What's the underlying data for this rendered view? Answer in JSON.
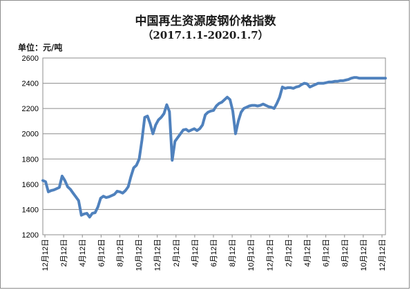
{
  "chart_data": {
    "type": "line",
    "title": "中国再生资源废钢价格指数",
    "subtitle": "（2017.1.1-2020.1.7）",
    "unit_label": "单位：元/吨",
    "xlabel": "",
    "ylabel": "",
    "ylim": [
      1200,
      2600
    ],
    "y_ticks": [
      "1200",
      "1400",
      "1600",
      "1800",
      "2000",
      "2200",
      "2400",
      "2600"
    ],
    "x_tick_labels": [
      "12月12日",
      "2月12日",
      "4月12日",
      "6月12日",
      "8月12日",
      "10月12日",
      "12月12日",
      "2月12日",
      "4月12日",
      "6月12日",
      "8月12日",
      "10月12日",
      "12月12日",
      "2月12日",
      "4月12日",
      "6月12日",
      "8月12日",
      "10月12日",
      "12月12日"
    ],
    "grid": "horizontal",
    "legend": "none",
    "line_color": "#4f81bd",
    "series": [
      {
        "x": [
          "2016-12-13",
          "2016-12-22",
          "2016-12-31",
          "2017-01-09",
          "2017-01-18",
          "2017-01-27",
          "2017-02-05",
          "2017-02-14",
          "2017-02-23",
          "2017-03-04",
          "2017-03-13",
          "2017-03-22",
          "2017-03-31",
          "2017-04-09",
          "2017-04-18",
          "2017-04-27",
          "2017-05-06",
          "2017-05-15",
          "2017-05-24",
          "2017-06-02",
          "2017-06-11",
          "2017-06-20",
          "2017-06-29",
          "2017-07-08",
          "2017-07-17",
          "2017-07-26",
          "2017-08-04",
          "2017-08-13",
          "2017-08-22",
          "2017-08-31",
          "2017-09-09",
          "2017-09-18",
          "2017-09-27",
          "2017-10-06",
          "2017-10-15",
          "2017-10-24",
          "2017-11-02",
          "2017-11-11",
          "2017-11-20",
          "2017-11-29",
          "2017-12-08",
          "2017-12-17",
          "2017-12-26",
          "2018-01-04",
          "2018-01-13",
          "2018-01-22",
          "2018-01-31",
          "2018-02-09",
          "2018-02-18",
          "2018-02-27",
          "2018-03-08",
          "2018-03-17",
          "2018-03-26",
          "2018-04-04",
          "2018-04-13",
          "2018-04-22",
          "2018-05-01",
          "2018-05-10",
          "2018-05-19",
          "2018-05-28",
          "2018-06-06",
          "2018-06-15",
          "2018-06-24",
          "2018-07-03",
          "2018-07-12",
          "2018-07-21",
          "2018-07-30",
          "2018-08-08",
          "2018-08-17",
          "2018-08-26",
          "2018-09-04",
          "2018-09-13",
          "2018-09-22",
          "2018-10-01",
          "2018-10-10",
          "2018-10-19",
          "2018-10-28",
          "2018-11-06",
          "2018-11-15",
          "2018-11-24",
          "2018-12-03",
          "2018-12-12",
          "2018-12-21",
          "2018-12-30",
          "2019-01-08",
          "2019-01-17",
          "2019-01-26",
          "2019-02-04",
          "2019-02-13",
          "2019-02-22",
          "2019-03-03",
          "2019-03-12",
          "2019-03-21",
          "2019-03-30",
          "2019-04-08",
          "2019-04-17",
          "2019-04-26",
          "2019-05-05",
          "2019-05-14",
          "2019-05-23",
          "2019-06-01",
          "2019-06-10",
          "2019-06-19",
          "2019-06-28",
          "2019-07-07",
          "2019-07-16",
          "2019-07-25",
          "2019-08-03",
          "2019-08-12",
          "2019-08-21",
          "2019-08-30",
          "2019-09-08",
          "2019-09-17",
          "2019-09-26",
          "2019-10-05",
          "2019-10-14",
          "2019-10-23",
          "2019-11-01",
          "2019-11-10",
          "2019-11-19",
          "2019-11-28",
          "2019-12-07",
          "2019-12-16",
          "2019-12-25",
          "2020-01-03",
          "2020-01-07"
        ],
        "y": [
          1630,
          1620,
          1540,
          1550,
          1555,
          1565,
          1575,
          1665,
          1630,
          1580,
          1560,
          1530,
          1500,
          1470,
          1355,
          1365,
          1370,
          1340,
          1370,
          1375,
          1420,
          1490,
          1505,
          1495,
          1500,
          1510,
          1520,
          1545,
          1540,
          1530,
          1550,
          1580,
          1660,
          1730,
          1750,
          1800,
          1950,
          2130,
          2140,
          2080,
          2000,
          2070,
          2110,
          2130,
          2160,
          2230,
          2175,
          1790,
          1940,
          1970,
          2000,
          2030,
          2035,
          2020,
          2030,
          2040,
          2025,
          2040,
          2070,
          2150,
          2170,
          2180,
          2185,
          2220,
          2240,
          2250,
          2270,
          2290,
          2270,
          2180,
          2000,
          2100,
          2170,
          2200,
          2210,
          2220,
          2225,
          2225,
          2220,
          2225,
          2235,
          2225,
          2215,
          2210,
          2200,
          2240,
          2290,
          2370,
          2360,
          2365,
          2365,
          2360,
          2370,
          2375,
          2390,
          2400,
          2395,
          2370,
          2380,
          2390,
          2400,
          2400,
          2400,
          2405,
          2410,
          2410,
          2415,
          2415,
          2420,
          2420,
          2425,
          2430,
          2440,
          2445,
          2445,
          2440,
          2440,
          2440,
          2440,
          2440,
          2440,
          2440,
          2440,
          2440,
          2440,
          2440
        ]
      }
    ]
  }
}
